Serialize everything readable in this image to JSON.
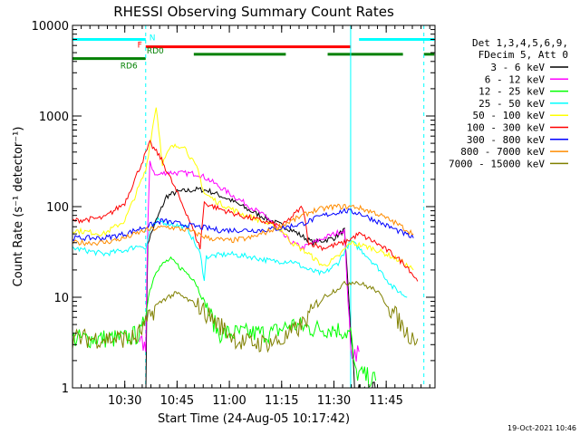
{
  "chart_data": {
    "type": "line",
    "title": "RHESSI Observing Summary Count Rates",
    "xlabel": "Start Time (24-Aug-05 10:17:42)",
    "ylabel": "Count Rate (s⁻¹ detector⁻¹)",
    "y_scale": "log",
    "ylim": [
      1,
      10000
    ],
    "xlim": [
      10.25,
      11.9833
    ],
    "x_ticks": [
      {
        "value": 10.5,
        "label": "10:30"
      },
      {
        "value": 10.75,
        "label": "10:45"
      },
      {
        "value": 11.0,
        "label": "11:00"
      },
      {
        "value": 11.25,
        "label": "11:15"
      },
      {
        "value": 11.5,
        "label": "11:30"
      },
      {
        "value": 11.75,
        "label": "11:45"
      }
    ],
    "y_ticks": [
      {
        "value": 1,
        "label": "1"
      },
      {
        "value": 10,
        "label": "10"
      },
      {
        "value": 100,
        "label": "100"
      },
      {
        "value": 1000,
        "label": "1000"
      },
      {
        "value": 10000,
        "label": "10000"
      }
    ],
    "legend_header": [
      "Det 1,3,4,5,6,9,",
      "FDecim 5, Att 0"
    ],
    "legend_position": "right",
    "timestamp": "19-Oct-2021 10:46",
    "series": [
      {
        "name": "3 - 6 keV",
        "color": "#000000",
        "points": [
          [
            10.6,
            0.8
          ],
          [
            10.61,
            40
          ],
          [
            10.65,
            70
          ],
          [
            10.7,
            130
          ],
          [
            10.75,
            145
          ],
          [
            10.85,
            155
          ],
          [
            10.9,
            150
          ],
          [
            11.0,
            120
          ],
          [
            11.1,
            90
          ],
          [
            11.2,
            70
          ],
          [
            11.3,
            55
          ],
          [
            11.4,
            40
          ],
          [
            11.5,
            45
          ],
          [
            11.55,
            55
          ],
          [
            11.6,
            0.9
          ],
          [
            11.7,
            0.9
          ]
        ]
      },
      {
        "name": "6 - 12 keV",
        "color": "#ff00ff",
        "points": [
          [
            10.57,
            3
          ],
          [
            10.6,
            3
          ],
          [
            10.61,
            60
          ],
          [
            10.62,
            300
          ],
          [
            10.65,
            220
          ],
          [
            10.7,
            240
          ],
          [
            10.75,
            235
          ],
          [
            10.85,
            230
          ],
          [
            10.9,
            200
          ],
          [
            11.0,
            140
          ],
          [
            11.1,
            100
          ],
          [
            11.2,
            70
          ],
          [
            11.25,
            50
          ],
          [
            11.3,
            40
          ],
          [
            11.35,
            35
          ],
          [
            11.45,
            45
          ],
          [
            11.55,
            55
          ],
          [
            11.58,
            2.5
          ],
          [
            11.62,
            2.5
          ]
        ]
      },
      {
        "name": "12 - 25 keV",
        "color": "#00ff00",
        "points": [
          [
            10.25,
            3.5
          ],
          [
            10.4,
            3.5
          ],
          [
            10.5,
            3.5
          ],
          [
            10.58,
            4
          ],
          [
            10.6,
            7
          ],
          [
            10.62,
            12
          ],
          [
            10.65,
            20
          ],
          [
            10.7,
            25
          ],
          [
            10.72,
            26
          ],
          [
            10.78,
            20
          ],
          [
            10.83,
            16
          ],
          [
            10.9,
            7
          ],
          [
            10.95,
            4
          ],
          [
            11.1,
            4
          ],
          [
            11.2,
            4
          ],
          [
            11.3,
            5
          ],
          [
            11.4,
            4.5
          ],
          [
            11.5,
            4.5
          ],
          [
            11.58,
            4
          ],
          [
            11.6,
            1.5
          ],
          [
            11.7,
            1.2
          ]
        ]
      },
      {
        "name": "25 - 50 keV",
        "color": "#00ffff",
        "points": [
          [
            10.25,
            35
          ],
          [
            10.4,
            30
          ],
          [
            10.5,
            33
          ],
          [
            10.58,
            38
          ],
          [
            10.6,
            33
          ],
          [
            10.62,
            55
          ],
          [
            10.66,
            70
          ],
          [
            10.75,
            62
          ],
          [
            10.8,
            58
          ],
          [
            10.86,
            30
          ],
          [
            10.88,
            16
          ],
          [
            10.89,
            28
          ],
          [
            11.0,
            30
          ],
          [
            11.1,
            28
          ],
          [
            11.2,
            25
          ],
          [
            11.3,
            25
          ],
          [
            11.38,
            20
          ],
          [
            11.45,
            18
          ],
          [
            11.52,
            24
          ],
          [
            11.58,
            42
          ],
          [
            11.65,
            30
          ],
          [
            11.72,
            20
          ],
          [
            11.78,
            13
          ],
          [
            11.85,
            10
          ]
        ]
      },
      {
        "name": "50 - 100 keV",
        "color": "#ffff00",
        "points": [
          [
            10.25,
            55
          ],
          [
            10.4,
            50
          ],
          [
            10.5,
            70
          ],
          [
            10.6,
            250
          ],
          [
            10.65,
            1300
          ],
          [
            10.68,
            300
          ],
          [
            10.72,
            450
          ],
          [
            10.78,
            480
          ],
          [
            10.85,
            250
          ],
          [
            10.88,
            140
          ],
          [
            10.95,
            110
          ],
          [
            11.05,
            85
          ],
          [
            11.15,
            70
          ],
          [
            11.25,
            55
          ],
          [
            11.3,
            40
          ],
          [
            11.38,
            30
          ],
          [
            11.45,
            22
          ],
          [
            11.52,
            28
          ],
          [
            11.58,
            40
          ],
          [
            11.68,
            35
          ],
          [
            11.75,
            30
          ],
          [
            11.82,
            25
          ],
          [
            11.88,
            20
          ]
        ]
      },
      {
        "name": "100 - 300 keV",
        "color": "#ff0000",
        "points": [
          [
            10.25,
            70
          ],
          [
            10.4,
            75
          ],
          [
            10.5,
            110
          ],
          [
            10.58,
            300
          ],
          [
            10.62,
            500
          ],
          [
            10.67,
            350
          ],
          [
            10.72,
            200
          ],
          [
            10.8,
            80
          ],
          [
            10.86,
            35
          ],
          [
            10.88,
            110
          ],
          [
            10.95,
            95
          ],
          [
            11.05,
            80
          ],
          [
            11.15,
            70
          ],
          [
            11.25,
            60
          ],
          [
            11.35,
            100
          ],
          [
            11.38,
            40
          ],
          [
            11.45,
            35
          ],
          [
            11.55,
            40
          ],
          [
            11.62,
            50
          ],
          [
            11.7,
            40
          ],
          [
            11.78,
            30
          ],
          [
            11.85,
            22
          ],
          [
            11.9,
            15
          ]
        ]
      },
      {
        "name": "300 - 800 keV",
        "color": "#0000ff",
        "points": [
          [
            10.25,
            45
          ],
          [
            10.4,
            45
          ],
          [
            10.5,
            50
          ],
          [
            10.6,
            60
          ],
          [
            10.68,
            70
          ],
          [
            10.75,
            65
          ],
          [
            10.85,
            60
          ],
          [
            10.95,
            55
          ],
          [
            11.05,
            55
          ],
          [
            11.15,
            55
          ],
          [
            11.25,
            58
          ],
          [
            11.35,
            65
          ],
          [
            11.45,
            80
          ],
          [
            11.55,
            90
          ],
          [
            11.62,
            85
          ],
          [
            11.7,
            70
          ],
          [
            11.8,
            55
          ],
          [
            11.88,
            45
          ]
        ]
      },
      {
        "name": "800 - 7000 keV",
        "color": "#ff8c00",
        "points": [
          [
            10.25,
            40
          ],
          [
            10.4,
            40
          ],
          [
            10.5,
            45
          ],
          [
            10.6,
            55
          ],
          [
            10.7,
            60
          ],
          [
            10.8,
            55
          ],
          [
            10.9,
            45
          ],
          [
            11.0,
            42
          ],
          [
            11.1,
            45
          ],
          [
            11.2,
            55
          ],
          [
            11.3,
            70
          ],
          [
            11.4,
            90
          ],
          [
            11.5,
            100
          ],
          [
            11.6,
            100
          ],
          [
            11.7,
            85
          ],
          [
            11.8,
            65
          ],
          [
            11.88,
            50
          ]
        ]
      },
      {
        "name": "7000 - 15000 keV",
        "color": "#808000",
        "points": [
          [
            10.25,
            3.5
          ],
          [
            10.4,
            3.5
          ],
          [
            10.55,
            3.5
          ],
          [
            10.6,
            5
          ],
          [
            10.65,
            8
          ],
          [
            10.7,
            10
          ],
          [
            10.75,
            11
          ],
          [
            10.85,
            8
          ],
          [
            10.95,
            5
          ],
          [
            11.05,
            3.2
          ],
          [
            11.15,
            3.1
          ],
          [
            11.25,
            3.3
          ],
          [
            11.35,
            5
          ],
          [
            11.45,
            10
          ],
          [
            11.55,
            14
          ],
          [
            11.6,
            15
          ],
          [
            11.7,
            12
          ],
          [
            11.78,
            7
          ],
          [
            11.85,
            4
          ],
          [
            11.9,
            3.5
          ]
        ]
      }
    ],
    "flag_bars": [
      {
        "label": "N",
        "color": "#00ffff",
        "y": 7000,
        "segments": [
          [
            10.25,
            10.6
          ],
          [
            11.62,
            11.98
          ]
        ]
      },
      {
        "label": "F",
        "color": "#ff0000",
        "y": 5800,
        "segments": [
          [
            10.6,
            11.58
          ]
        ]
      },
      {
        "label": "RD0",
        "color": "#008000",
        "y": 4800,
        "segments": [
          [
            10.83,
            11.27
          ],
          [
            11.47,
            11.83
          ],
          [
            11.93,
            11.98
          ]
        ]
      },
      {
        "label": "RD6",
        "color": "#008000",
        "y": 4300,
        "segments": [
          [
            10.25,
            10.6
          ]
        ]
      }
    ],
    "vertical_markers": [
      {
        "x": 10.25,
        "color": "#00ffff",
        "style": "solid"
      },
      {
        "x": 10.6,
        "color": "#00ffff",
        "style": "dashed"
      },
      {
        "x": 11.58,
        "color": "#00ffff",
        "style": "solid"
      },
      {
        "x": 11.93,
        "color": "#00ffff",
        "style": "dashed"
      }
    ]
  }
}
